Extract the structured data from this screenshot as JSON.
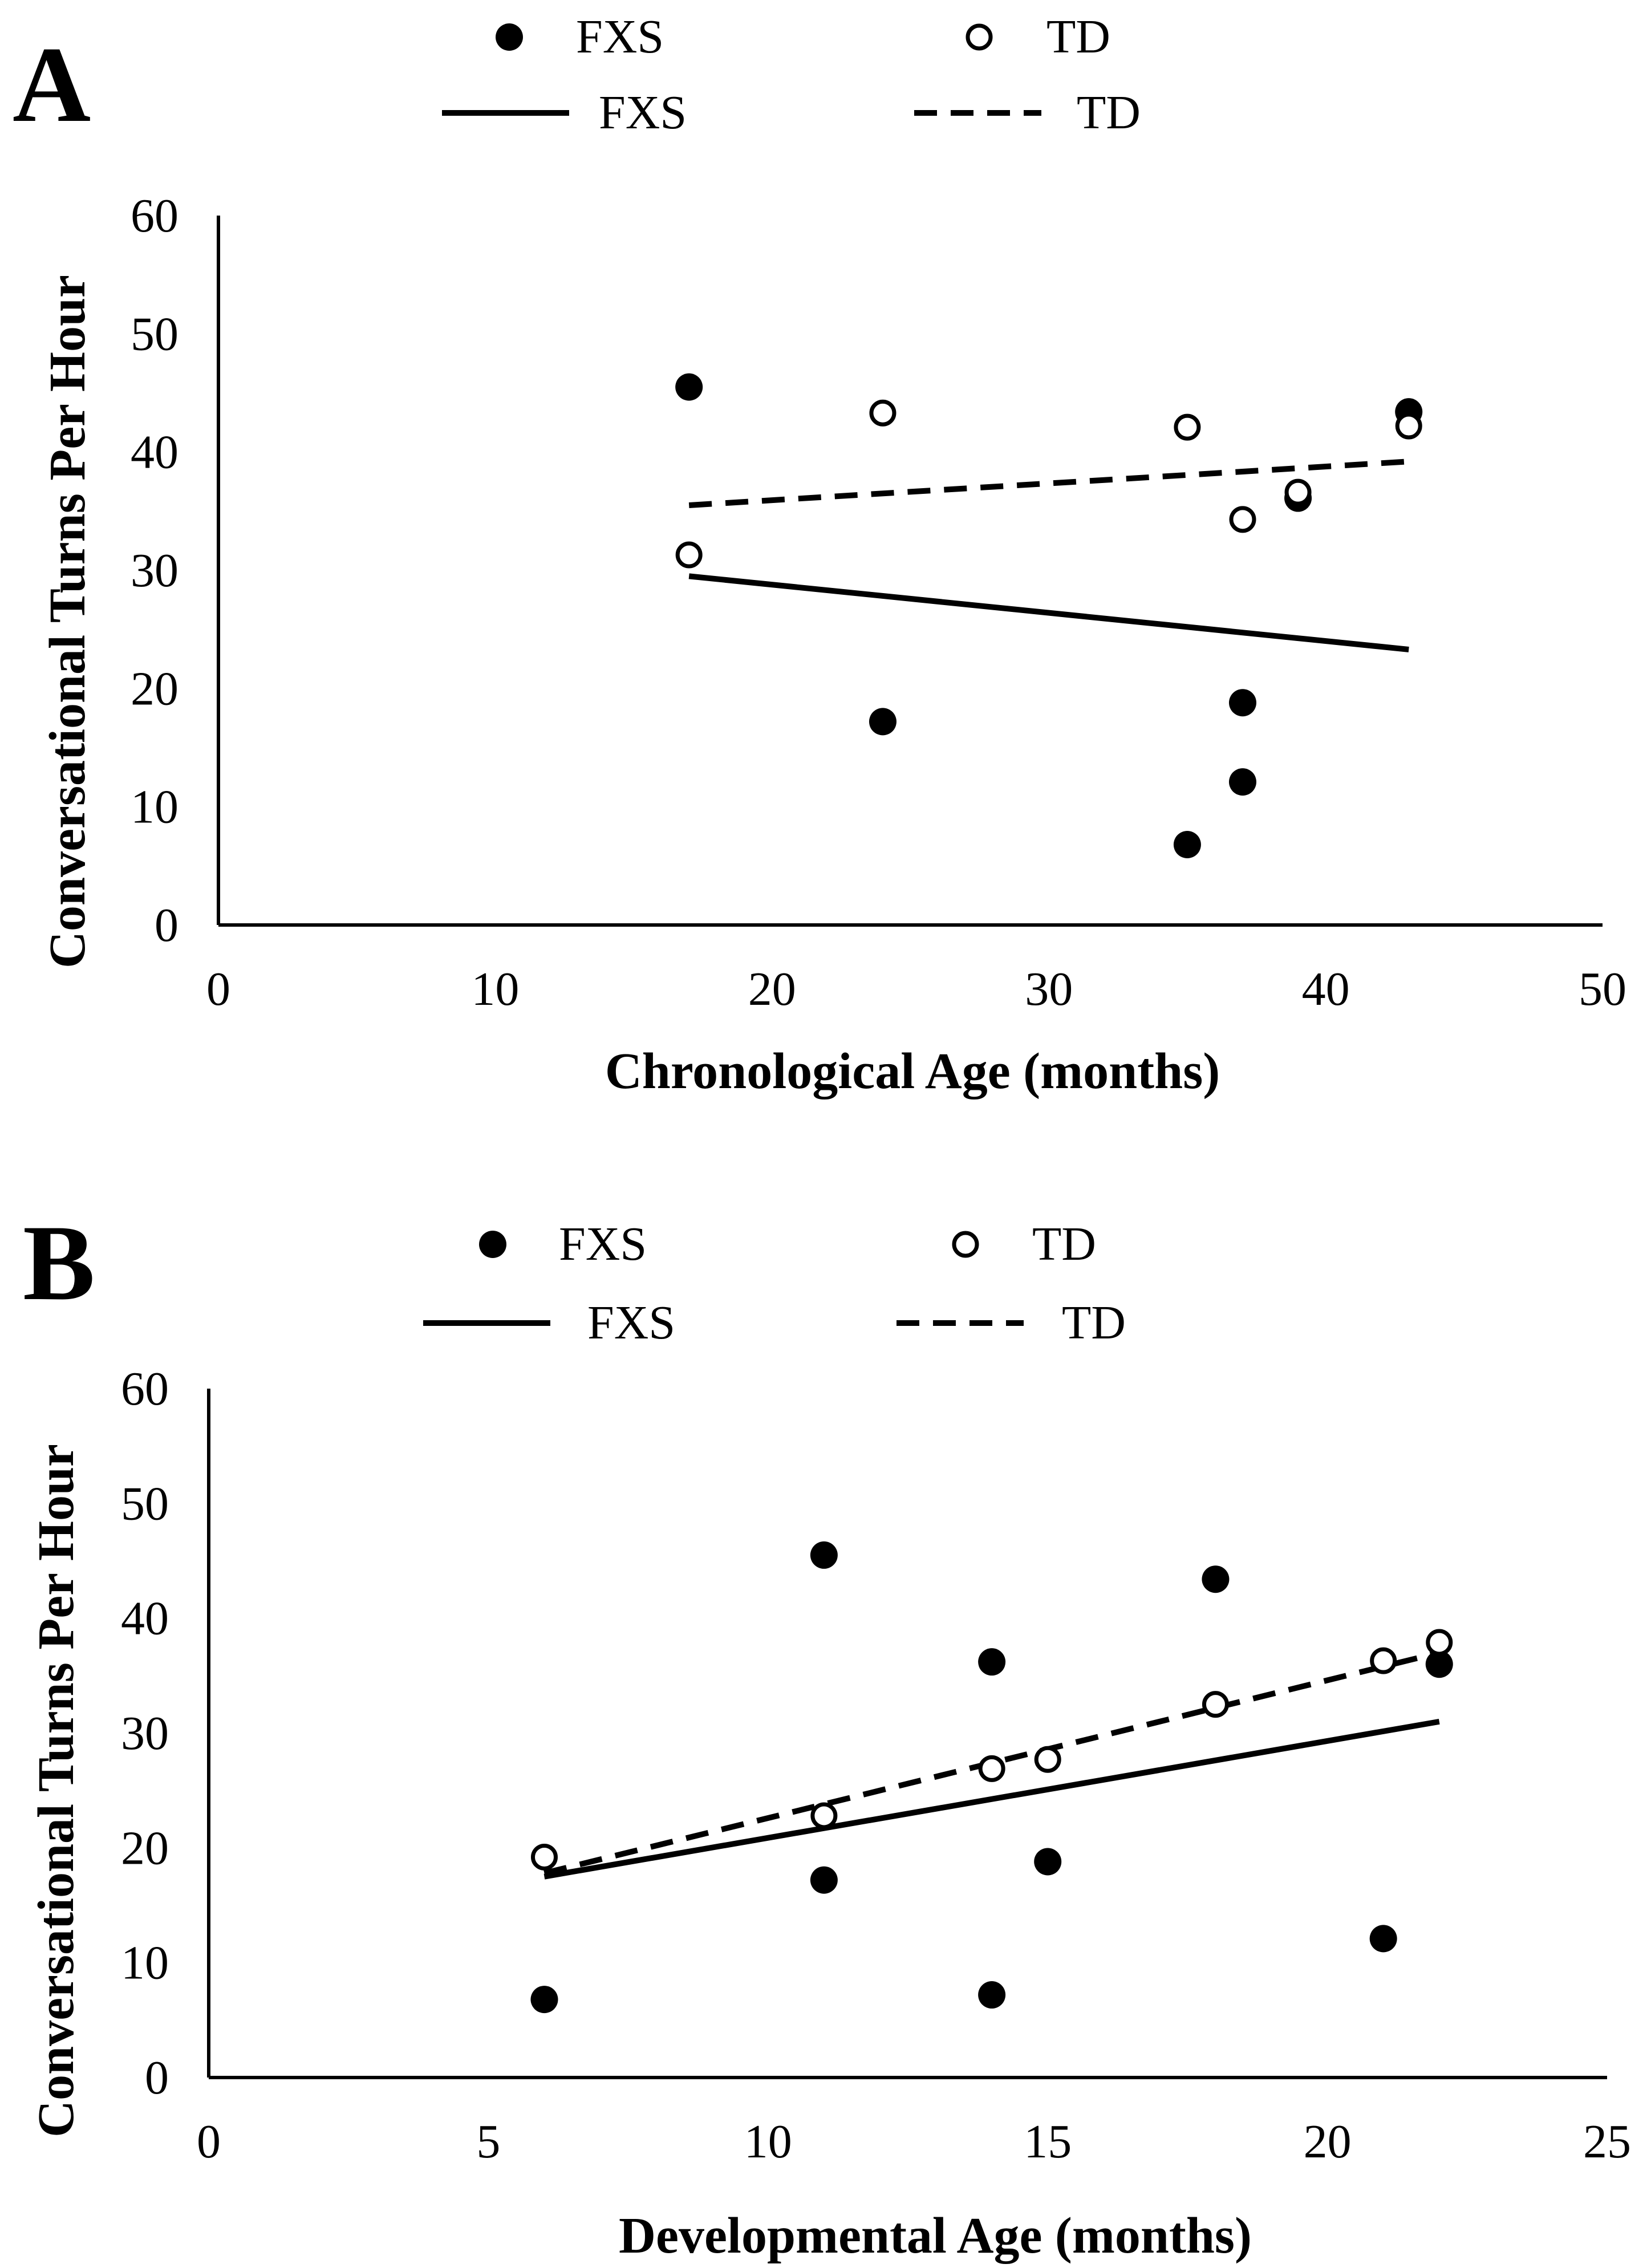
{
  "chart_data": [
    {
      "panel_label": "A",
      "type": "scatter",
      "xlabel": "Chronological Age (months)",
      "ylabel": "Conversational Turns Per Hour",
      "xlim": [
        0,
        50
      ],
      "ylim": [
        0,
        60
      ],
      "xticks": [
        "0",
        "10",
        "20",
        "30",
        "40",
        "50"
      ],
      "yticks": [
        "0",
        "10",
        "20",
        "30",
        "40",
        "50",
        "60"
      ],
      "legend": {
        "placement": "top",
        "entries": [
          {
            "label": "FXS",
            "marker": "filled-circle"
          },
          {
            "label": "TD",
            "marker": "open-circle"
          },
          {
            "label": "FXS",
            "line": "solid"
          },
          {
            "label": "TD",
            "line": "dashed"
          }
        ]
      },
      "series": [
        {
          "name": "FXS",
          "marker": "filled-circle",
          "x": [
            17,
            24,
            35,
            37,
            37,
            39,
            43
          ],
          "y": [
            45.5,
            17.2,
            6.8,
            12.1,
            18.8,
            36.1,
            43.4
          ]
        },
        {
          "name": "TD",
          "marker": "open-circle",
          "x": [
            17,
            24,
            35,
            37,
            39,
            43
          ],
          "y": [
            31.3,
            43.3,
            42.1,
            34.3,
            36.6,
            42.2
          ]
        }
      ],
      "trendlines": [
        {
          "name": "FXS",
          "style": "solid",
          "x": [
            17,
            43
          ],
          "y": [
            29.5,
            23.3
          ]
        },
        {
          "name": "TD",
          "style": "dashed",
          "x": [
            17,
            43
          ],
          "y": [
            35.5,
            39.2
          ]
        }
      ]
    },
    {
      "panel_label": "B",
      "type": "scatter",
      "xlabel": "Developmental Age (months)",
      "ylabel": "Conversational Turns Per Hour",
      "xlim": [
        0,
        25
      ],
      "ylim": [
        0,
        60
      ],
      "xticks": [
        "0",
        "5",
        "10",
        "15",
        "20",
        "25"
      ],
      "yticks": [
        "0",
        "10",
        "20",
        "30",
        "40",
        "50",
        "60"
      ],
      "legend": {
        "placement": "top",
        "entries": [
          {
            "label": "FXS",
            "marker": "filled-circle"
          },
          {
            "label": "TD",
            "marker": "open-circle"
          },
          {
            "label": "FXS",
            "line": "solid"
          },
          {
            "label": "TD",
            "line": "dashed"
          }
        ]
      },
      "series": [
        {
          "name": "FXS",
          "marker": "filled-circle",
          "x": [
            6,
            11,
            11,
            14,
            14,
            15,
            18,
            21,
            22
          ],
          "y": [
            6.8,
            45.5,
            17.2,
            36.2,
            7.2,
            18.8,
            43.4,
            12.1,
            36.0
          ]
        },
        {
          "name": "TD",
          "marker": "open-circle",
          "x": [
            6,
            11,
            14,
            15,
            18,
            21,
            22
          ],
          "y": [
            19.2,
            22.8,
            26.9,
            27.7,
            32.5,
            36.3,
            37.9
          ]
        }
      ],
      "trendlines": [
        {
          "name": "FXS",
          "style": "solid",
          "x": [
            6,
            22
          ],
          "y": [
            17.5,
            31.0
          ]
        },
        {
          "name": "TD",
          "style": "dashed",
          "x": [
            6,
            22
          ],
          "y": [
            17.8,
            37.0
          ]
        }
      ]
    }
  ]
}
